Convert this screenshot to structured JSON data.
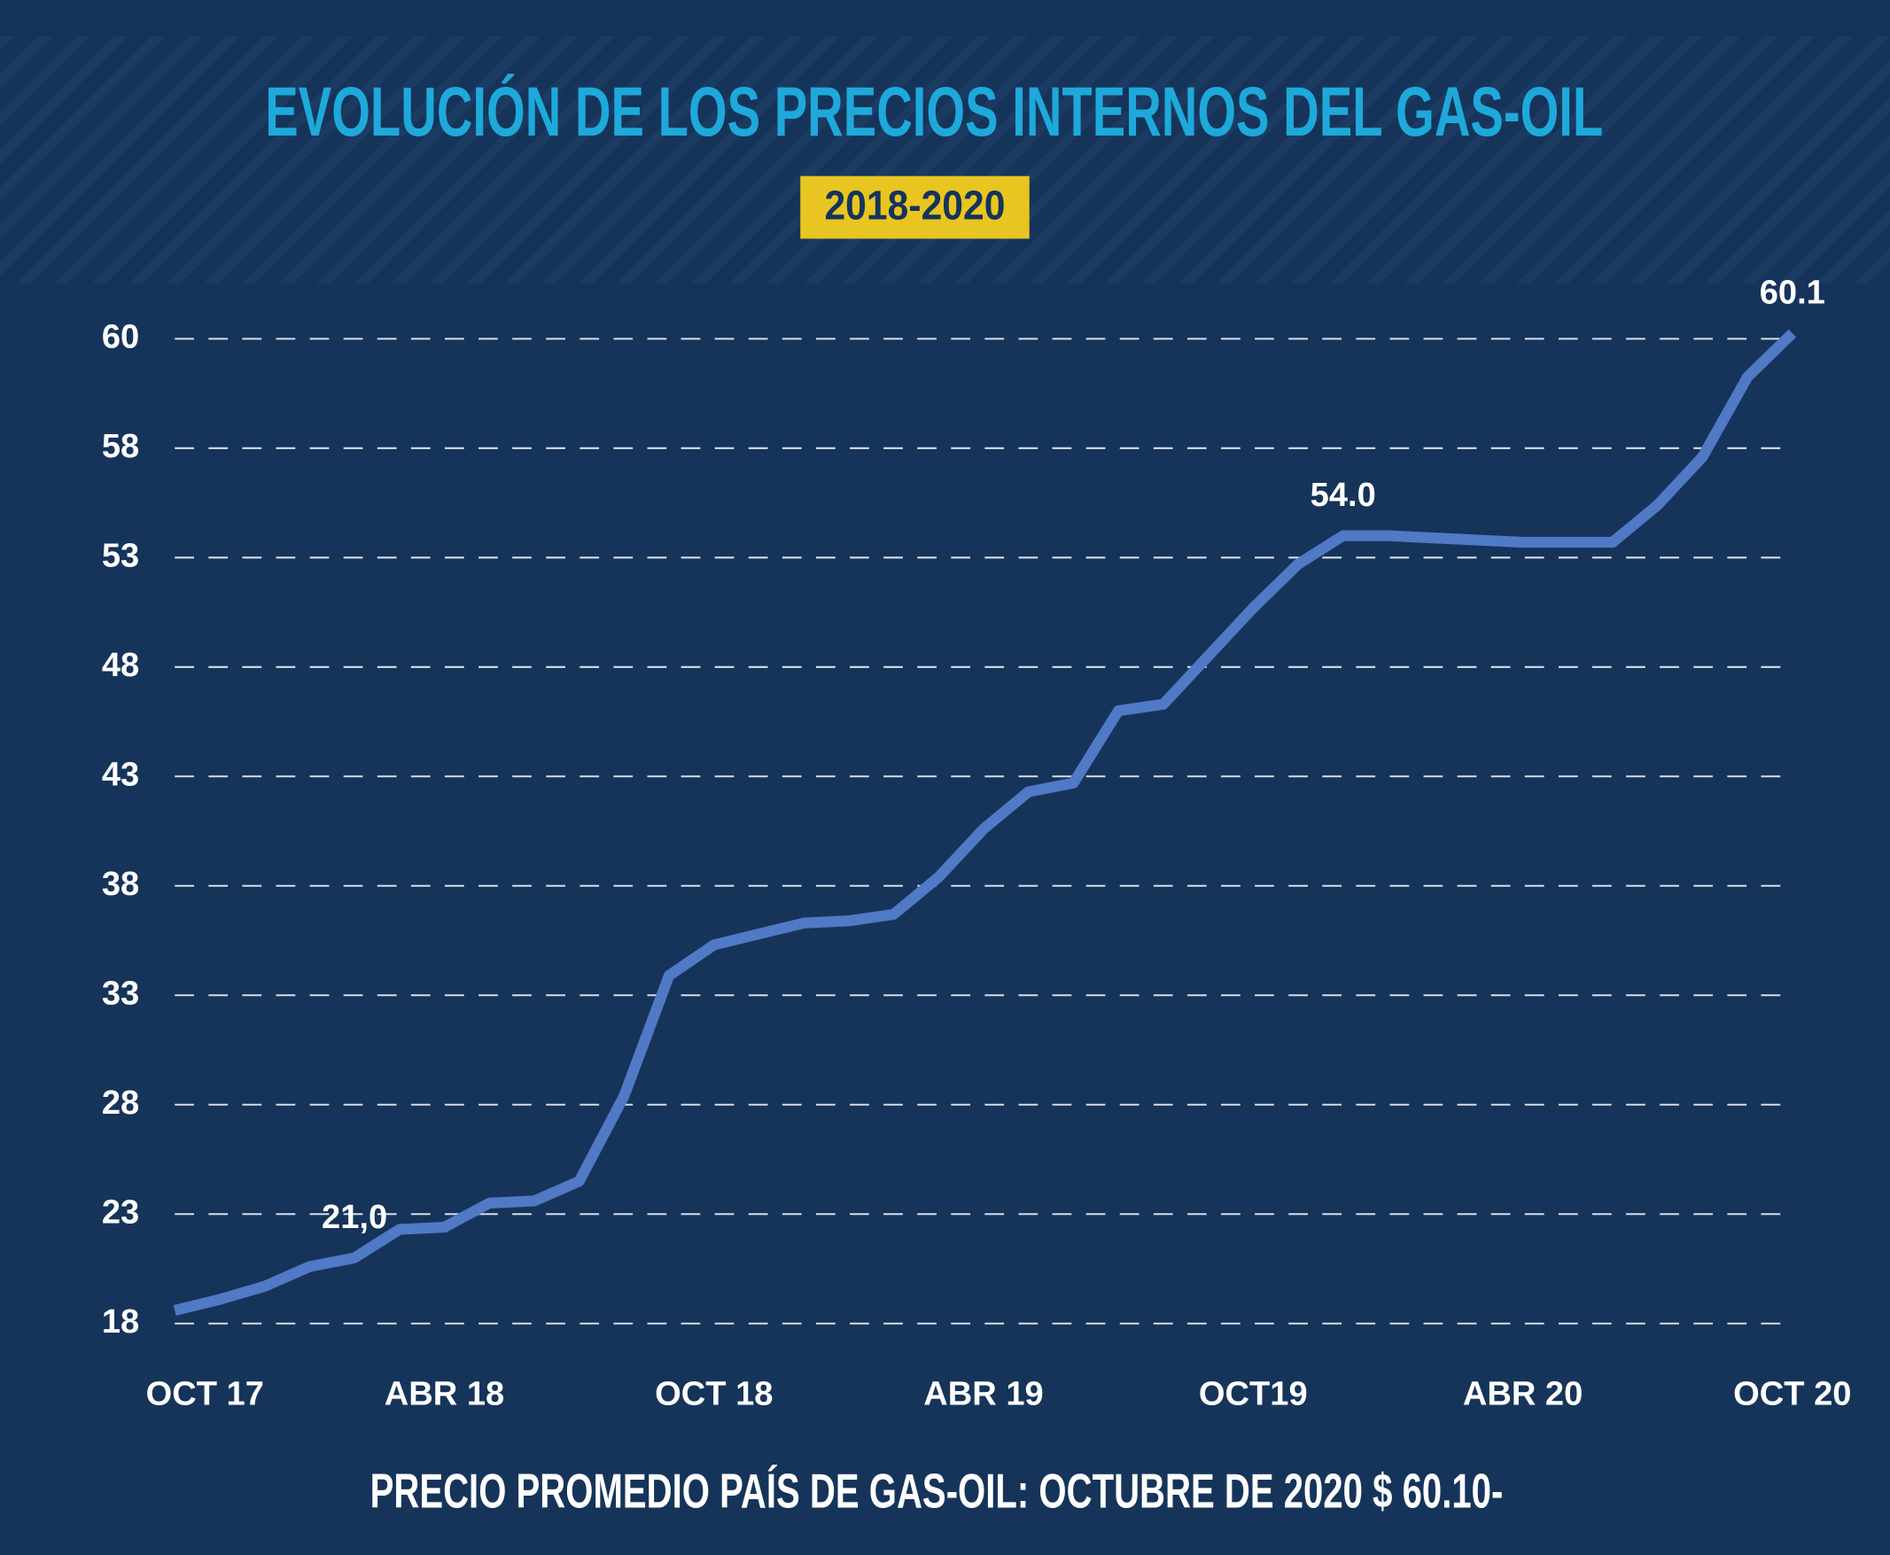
{
  "chart_data": {
    "type": "line",
    "title": "EVOLUCIÓN DE LOS PRECIOS INTERNOS DEL GAS-OIL",
    "subtitle": "2018-2020",
    "footer": "PRECIO PROMEDIO PAÍS DE GAS-OIL: OCTUBRE DE 2020 $ 60.10-",
    "categories": [
      "OCT 17",
      null,
      null,
      null,
      null,
      null,
      "ABR 18",
      null,
      null,
      null,
      null,
      null,
      "OCT 18",
      null,
      null,
      null,
      null,
      null,
      "ABR 19",
      null,
      null,
      null,
      null,
      null,
      "OCT19",
      null,
      null,
      null,
      null,
      null,
      "ABR 20",
      null,
      null,
      null,
      null,
      null,
      "OCT 20"
    ],
    "series": [
      {
        "name": "Gas-oil",
        "color": "#5079c6",
        "values": [
          18.6,
          19.1,
          19.7,
          20.6,
          21.0,
          22.3,
          22.4,
          23.5,
          23.6,
          24.5,
          28.4,
          33.9,
          35.3,
          35.8,
          36.3,
          36.4,
          36.7,
          38.4,
          40.6,
          42.3,
          42.7,
          46.0,
          46.3,
          48.5,
          50.7,
          52.7,
          54.0,
          54.0,
          53.9,
          53.8,
          53.7,
          53.7,
          53.7,
          55.4,
          57.6,
          59.3,
          60.1
        ],
        "value_labels": [
          null,
          null,
          null,
          null,
          "21,0",
          null,
          null,
          null,
          null,
          null,
          null,
          null,
          null,
          null,
          null,
          null,
          null,
          null,
          null,
          null,
          null,
          null,
          null,
          null,
          null,
          null,
          "54.0",
          null,
          null,
          null,
          null,
          null,
          null,
          null,
          null,
          null,
          "60.1"
        ]
      }
    ],
    "ylim": [
      18,
      60
    ],
    "yticks": [
      18,
      23,
      28,
      33,
      38,
      43,
      48,
      53,
      58,
      60
    ],
    "grid": true
  }
}
